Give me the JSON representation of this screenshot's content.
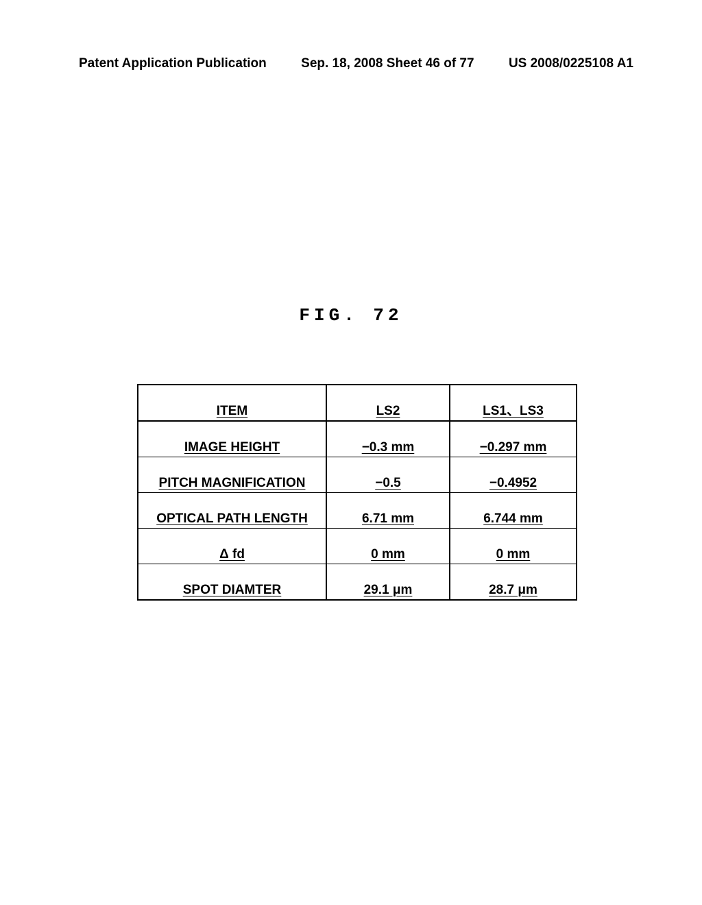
{
  "header": {
    "left": "Patent Application Publication",
    "center": "Sep. 18, 2008  Sheet 46 of 77",
    "right": "US 2008/0225108 A1"
  },
  "figure_caption": "FIG. 72",
  "table": {
    "columns": [
      "ITEM",
      "LS2",
      "LS1、LS3"
    ],
    "rows": [
      [
        "IMAGE HEIGHT",
        "−0.3 mm",
        "−0.297 mm"
      ],
      [
        "PITCH MAGNIFICATION",
        "−0.5",
        "−0.4952"
      ],
      [
        "OPTICAL PATH LENGTH",
        "6.71 mm",
        "6.744 mm"
      ],
      [
        "Δ fd",
        "0 mm",
        "0 mm"
      ],
      [
        "SPOT DIAMTER",
        "29.1 μm",
        "28.7 μm"
      ]
    ],
    "border_color": "#000000",
    "background_color": "#ffffff",
    "font_size": 19,
    "font_weight": "bold",
    "underline": true
  }
}
